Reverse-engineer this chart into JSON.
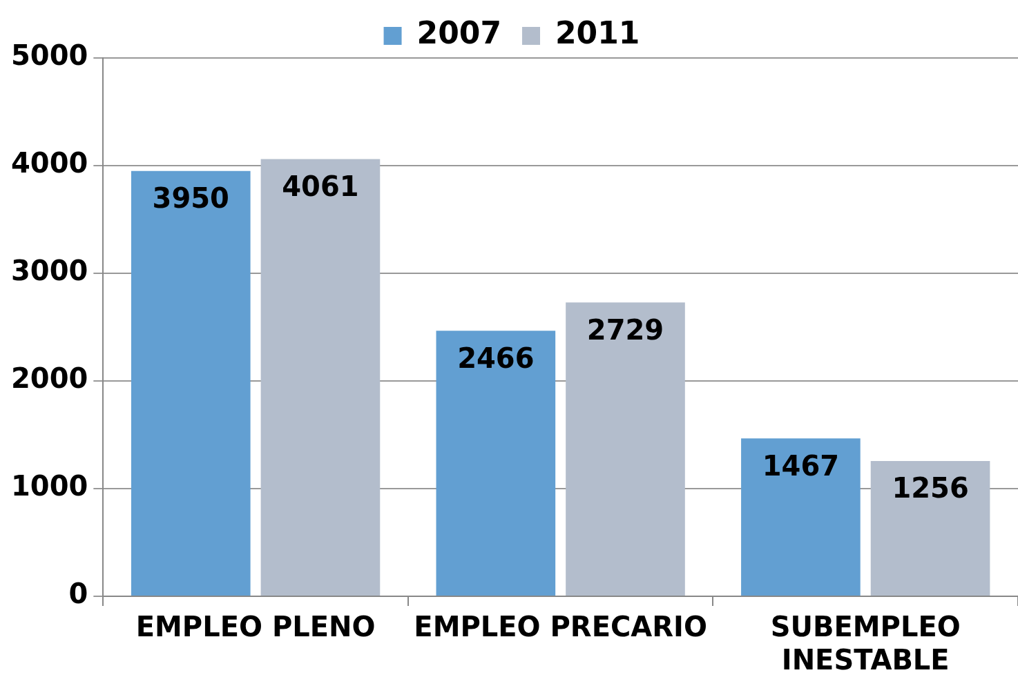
{
  "chart_data": {
    "type": "bar",
    "categories": [
      "EMPLEO PLENO",
      "EMPLEO PRECARIO",
      "SUBEMPLEO INESTABLE"
    ],
    "series": [
      {
        "name": "2007",
        "color": "#629fd2",
        "values": [
          3950,
          2466,
          1467
        ]
      },
      {
        "name": "2011",
        "color": "#b3bdcc",
        "values": [
          4061,
          2729,
          1256
        ]
      }
    ],
    "ylim": [
      0,
      5000
    ],
    "yticks": [
      0,
      1000,
      2000,
      3000,
      4000,
      5000
    ],
    "grid": "y",
    "legend": "top",
    "data_labels": true
  }
}
